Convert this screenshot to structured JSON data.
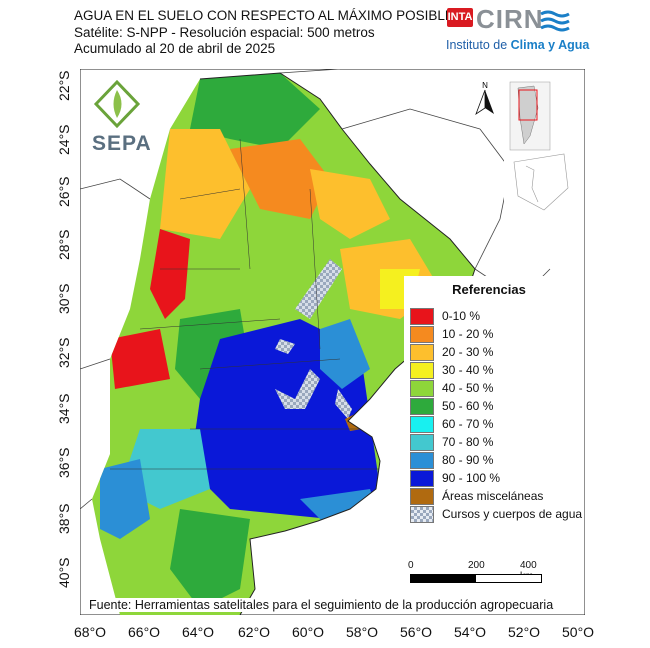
{
  "header": {
    "title": "AGUA EN EL SUELO CON RESPECTO AL MÁXIMO POSIBLE",
    "subtitle1": "Satélite: S-NPP - Resolución espacial: 500 metros",
    "subtitle2": "Acumulado al 20 de abril de 2025"
  },
  "logos": {
    "inta": "INTA",
    "cirn": "CIRN",
    "institute_prefix": "Instituto de ",
    "institute_highlight": "Clima y Agua",
    "sepa": "SEPA"
  },
  "north_label": "N",
  "lat_labels": [
    "22°S",
    "24°S",
    "26°S",
    "28°S",
    "30°S",
    "32°S",
    "34°S",
    "36°S",
    "38°S",
    "40°S"
  ],
  "lon_labels": [
    "68°O",
    "66°O",
    "64°O",
    "62°O",
    "60°O",
    "58°O",
    "56°O",
    "54°O",
    "52°O",
    "50°O"
  ],
  "legend": {
    "title": "Referencias",
    "items": [
      {
        "label": "0-10 %",
        "color": "#e8141b"
      },
      {
        "label": "10 - 20 %",
        "color": "#f58a1f"
      },
      {
        "label": "20 - 30 %",
        "color": "#fdbf2d"
      },
      {
        "label": "30 - 40 %",
        "color": "#f5f01f"
      },
      {
        "label": "40 - 50 %",
        "color": "#8ed63a"
      },
      {
        "label": "50 - 60 %",
        "color": "#2eaa3c"
      },
      {
        "label": "60 - 70 %",
        "color": "#18f0f0"
      },
      {
        "label": "70 - 80 %",
        "color": "#43c8cf"
      },
      {
        "label": "80 - 90 %",
        "color": "#2b8fd6"
      },
      {
        "label": "90 - 100 %",
        "color": "#0a18d8"
      },
      {
        "label": "Áreas misceláneas",
        "color": "#b06a10"
      },
      {
        "label": "Cursos y cuerpos de agua",
        "color": "#b9c4d6"
      }
    ]
  },
  "scale": {
    "labels": [
      "0",
      "200",
      "400 km"
    ]
  },
  "source": "Fuente: Herramientas satelitales para el seguimiento de la producción agropecuaria"
}
